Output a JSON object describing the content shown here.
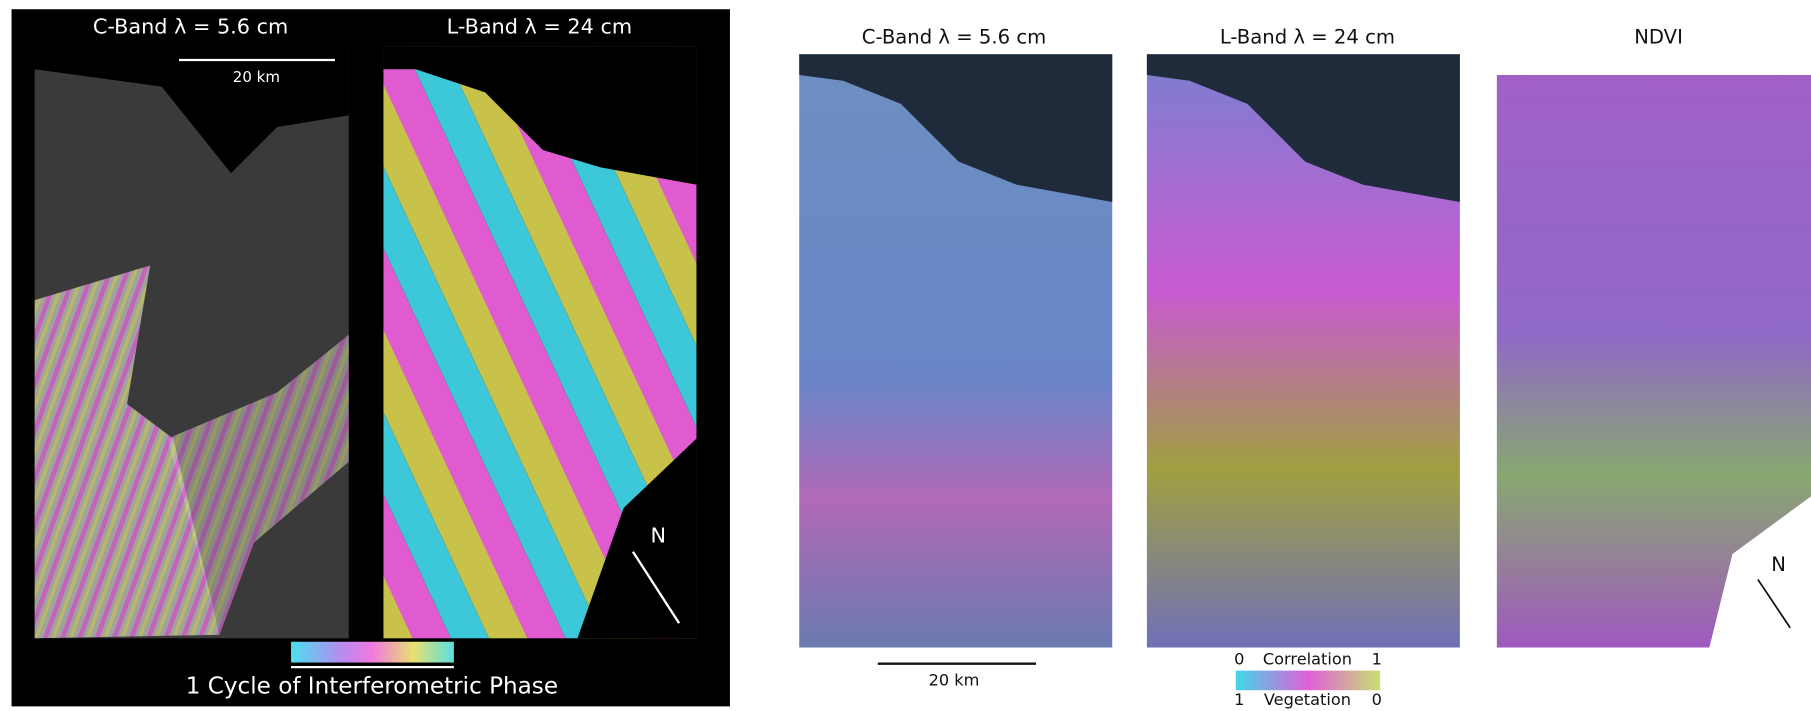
{
  "left_figure": {
    "panels": [
      {
        "title": "C-Band  λ  = 5.6 cm"
      },
      {
        "title": "L-Band  λ  = 24 cm"
      }
    ],
    "scale_bar": "20 km",
    "colorbar_caption": "1 Cycle of Interferometric Phase",
    "north": "N"
  },
  "right_figure": {
    "panels": [
      {
        "title": "C-Band  λ  = 5.6 cm"
      },
      {
        "title": "L-Band  λ  = 24 cm"
      },
      {
        "title": "NDVI"
      }
    ],
    "scale_bar": "20 km",
    "correlation": {
      "min": "0",
      "label": "Correlation",
      "max": "1"
    },
    "vegetation": {
      "min": "1",
      "label": "Vegetation",
      "max": "0"
    },
    "north": "N"
  }
}
